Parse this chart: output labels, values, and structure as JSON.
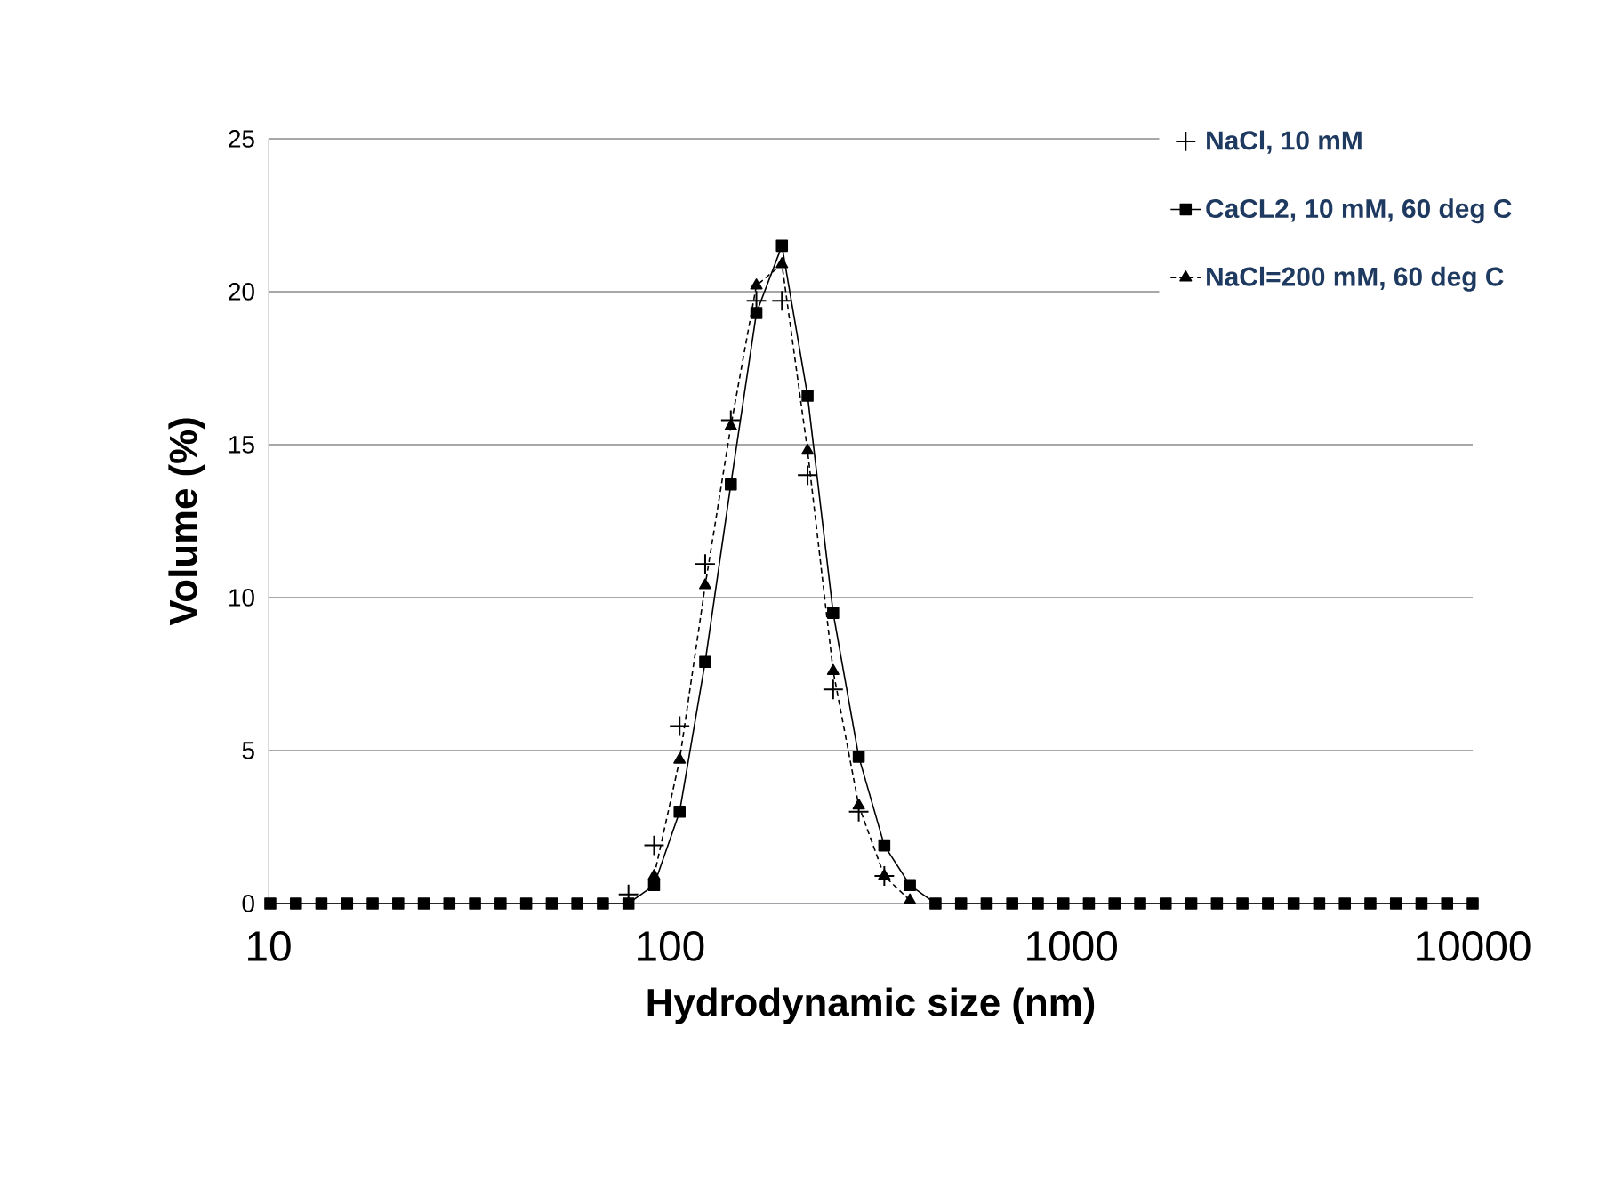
{
  "chart_data": {
    "type": "line",
    "xlabel": "Hydrodynamic size (nm)",
    "ylabel": "Volume (%)",
    "log": "x",
    "xlim": [
      10,
      10000
    ],
    "xticks": [
      10,
      100,
      1000,
      10000
    ],
    "ylim": [
      0,
      25
    ],
    "yticks": [
      0,
      5,
      10,
      15,
      20,
      25
    ],
    "grid": "y",
    "legend": "top right",
    "x": [
      10.1,
      11.7,
      13.54,
      15.69,
      18.17,
      21.04,
      24.36,
      28.21,
      32.67,
      37.84,
      43.82,
      50.75,
      58.77,
      68.06,
      78.82,
      91.28,
      105.7,
      122.4,
      141.8,
      164.2,
      190.1,
      220.2,
      255,
      295.3,
      342,
      396.1,
      458.7,
      531.2,
      615.1,
      712.4,
      825,
      955.4,
      1106,
      1281,
      1484,
      1718,
      1990,
      2305,
      2669,
      3091,
      3580,
      4145,
      4801,
      5560,
      6439,
      7456,
      8635,
      10000
    ],
    "series": [
      {
        "name": "NaCl, 10 mM",
        "type": "scatter",
        "marker": "cross",
        "color": "#000000",
        "values": [
          null,
          null,
          null,
          null,
          null,
          null,
          null,
          null,
          null,
          null,
          null,
          null,
          null,
          null,
          0.3,
          1.9,
          5.8,
          11.1,
          15.8,
          19.7,
          19.7,
          14.0,
          7.0,
          3.0,
          0.9,
          null,
          null,
          null,
          null,
          null,
          null,
          null,
          null,
          null,
          null,
          null,
          null,
          null,
          null,
          null,
          null,
          null,
          null,
          null,
          null,
          null,
          null,
          null
        ]
      },
      {
        "name": "CaCL2, 10 mM, 60 deg C",
        "marker": "square",
        "line_style": "solid",
        "color": "#000000",
        "values": [
          0,
          0,
          0,
          0,
          0,
          0,
          0,
          0,
          0,
          0,
          0,
          0,
          0,
          0,
          0,
          0.6,
          3.0,
          7.9,
          13.7,
          19.3,
          21.5,
          16.6,
          9.5,
          4.8,
          1.9,
          0.6,
          0,
          0,
          0,
          0,
          0,
          0,
          0,
          0,
          0,
          0,
          0,
          0,
          0,
          0,
          0,
          0,
          0,
          0,
          0,
          0,
          0,
          0
        ]
      },
      {
        "name": "NaCl=200 mM, 60 deg C",
        "marker": "triangle",
        "line_style": "dashed",
        "color": "#000000",
        "values": [
          null,
          null,
          null,
          null,
          null,
          null,
          null,
          null,
          null,
          null,
          null,
          null,
          null,
          null,
          null,
          0.9,
          4.7,
          10.4,
          15.6,
          20.2,
          20.9,
          14.8,
          7.6,
          3.2,
          0.9,
          0.1,
          null,
          null,
          null,
          null,
          null,
          null,
          null,
          null,
          null,
          null,
          null,
          null,
          null,
          null,
          null,
          null,
          null,
          null,
          null,
          null,
          null,
          null
        ]
      }
    ]
  }
}
